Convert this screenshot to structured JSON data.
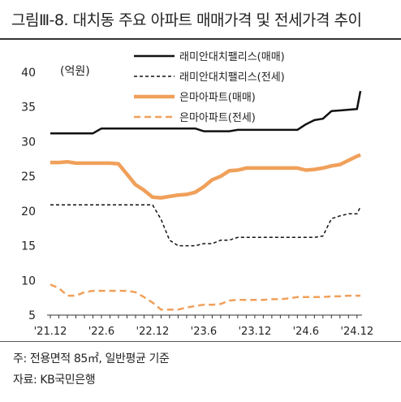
{
  "title": "그림Ⅲ-8. 대치동 주요 아파트 매매가격 및 전세가격 추이",
  "notes": {
    "note1": "주: 전용면적 85㎡, 일반평균 기준",
    "source": "자료: KB국민은행"
  },
  "chart_data": {
    "type": "line",
    "title": "",
    "xlabel": "",
    "ylabel": "(억원)",
    "ylim": [
      5,
      40
    ],
    "yticks": [
      5,
      10,
      15,
      20,
      25,
      30,
      35,
      40
    ],
    "xlim": [
      0,
      36.4
    ],
    "xtick_labels": [
      "'21.12",
      "'22.6",
      "'22.12",
      "'23.6",
      "'23.12",
      "'24.6",
      "'24.12"
    ],
    "xtick_positions": [
      0,
      6,
      12,
      18,
      24,
      30,
      36
    ],
    "grid": false,
    "legend_placement": "top-right",
    "series": [
      {
        "name": "래미안대치팰리스(매매)",
        "color": "#111111",
        "style": "solid",
        "x": [
          0,
          1,
          2,
          3,
          4,
          5,
          6,
          7,
          8,
          9,
          10,
          11,
          12,
          13,
          14,
          15,
          16,
          17,
          18,
          19,
          20,
          21,
          22,
          23,
          24,
          25,
          26,
          27,
          28,
          29,
          30,
          31,
          32,
          33,
          34,
          35,
          36,
          36.4
        ],
        "values": [
          31.2,
          31.2,
          31.2,
          31.2,
          31.2,
          31.2,
          31.9,
          31.9,
          31.9,
          31.9,
          31.9,
          31.9,
          31.9,
          31.9,
          31.9,
          31.9,
          31.9,
          31.9,
          31.5,
          31.5,
          31.5,
          31.5,
          31.7,
          31.7,
          31.7,
          31.7,
          31.7,
          31.7,
          31.7,
          31.7,
          32.5,
          33.1,
          33.3,
          34.4,
          34.5,
          34.6,
          34.7,
          37.3
        ]
      },
      {
        "name": "래미안대치팰리스(전세)",
        "color": "#111111",
        "style": "dashed",
        "x": [
          0,
          1,
          2,
          3,
          4,
          5,
          6,
          7,
          8,
          9,
          10,
          11,
          12,
          13,
          14,
          15,
          16,
          17,
          18,
          19,
          20,
          21,
          22,
          23,
          24,
          25,
          26,
          27,
          28,
          29,
          30,
          31,
          32,
          33,
          34,
          35,
          36,
          36.4
        ],
        "values": [
          20.9,
          20.9,
          20.9,
          20.9,
          20.9,
          20.9,
          20.9,
          20.9,
          20.9,
          20.9,
          20.9,
          20.9,
          20.9,
          18.8,
          15.8,
          15.0,
          15.0,
          15.0,
          15.3,
          15.3,
          15.8,
          15.8,
          16.2,
          16.2,
          16.2,
          16.2,
          16.2,
          16.2,
          16.2,
          16.2,
          16.2,
          16.2,
          16.4,
          18.9,
          19.3,
          19.6,
          19.6,
          20.6
        ]
      },
      {
        "name": "은마아파트(매매)",
        "color": "#f0a05a",
        "style": "solid",
        "x": [
          0,
          1,
          2,
          3,
          4,
          5,
          6,
          7,
          8,
          9,
          10,
          11,
          12,
          13,
          14,
          15,
          16,
          17,
          18,
          19,
          20,
          21,
          22,
          23,
          24,
          25,
          26,
          27,
          28,
          29,
          30,
          31,
          32,
          33,
          34,
          35,
          36,
          36.4
        ],
        "values": [
          27.0,
          27.0,
          27.1,
          26.9,
          26.9,
          26.9,
          26.9,
          26.9,
          26.8,
          25.3,
          23.8,
          23.0,
          22.0,
          21.9,
          22.1,
          22.3,
          22.4,
          22.7,
          23.5,
          24.5,
          25.0,
          25.8,
          25.9,
          26.2,
          26.2,
          26.2,
          26.2,
          26.2,
          26.2,
          26.2,
          25.9,
          26.0,
          26.2,
          26.5,
          26.7,
          27.3,
          27.9,
          28.1
        ]
      },
      {
        "name": "은마아파트(전세)",
        "color": "#f0a05a",
        "style": "dashed",
        "x": [
          0,
          1,
          2,
          3,
          4,
          5,
          6,
          7,
          8,
          9,
          10,
          11,
          12,
          13,
          14,
          15,
          16,
          17,
          18,
          19,
          20,
          21,
          22,
          23,
          24,
          25,
          26,
          27,
          28,
          29,
          30,
          31,
          32,
          33,
          34,
          35,
          36,
          36.4
        ],
        "values": [
          9.4,
          8.9,
          7.8,
          7.8,
          8.3,
          8.5,
          8.5,
          8.5,
          8.5,
          8.5,
          8.3,
          7.6,
          6.8,
          5.8,
          5.8,
          5.8,
          6.1,
          6.3,
          6.5,
          6.5,
          6.6,
          7.1,
          7.2,
          7.2,
          7.2,
          7.2,
          7.3,
          7.3,
          7.4,
          7.6,
          7.6,
          7.6,
          7.6,
          7.7,
          7.7,
          7.8,
          7.8,
          7.8
        ]
      }
    ]
  }
}
